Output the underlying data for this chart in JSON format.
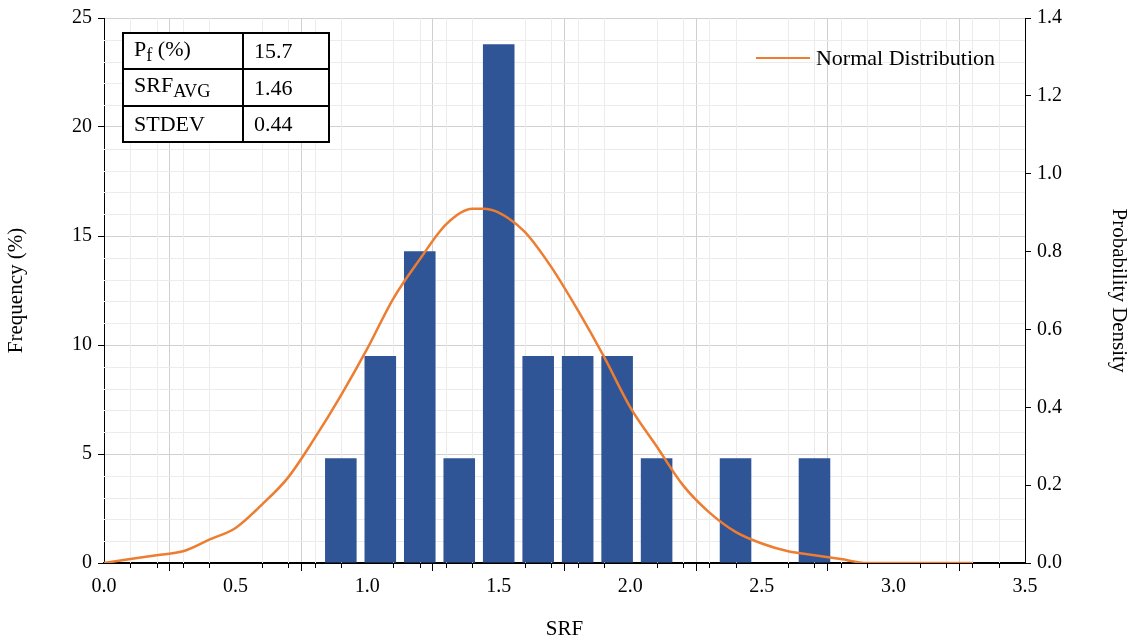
{
  "chart_data": {
    "type": "histogram",
    "xlabel": "SRF",
    "ylabel": "Frequency (%)",
    "y2label": "Probability Density",
    "bins": [
      0.825,
      0.975,
      1.125,
      1.275,
      1.425,
      1.575,
      1.725,
      1.875,
      2.025,
      2.175,
      2.325,
      2.475,
      2.625,
      2.775
    ],
    "series": [
      {
        "color": "#2f5597",
        "values": [
          4.8,
          9.5,
          14.3,
          4.8,
          23.8,
          9.5,
          9.5,
          9.5,
          4.8,
          0,
          4.8,
          0,
          4.8
        ]
      },
      {
        "type": "line",
        "name": "Normal Distribution",
        "color": "#ed7d31",
        "axis": "y2",
        "x": [
          0,
          0.1,
          0.2,
          0.3,
          0.4,
          0.5,
          0.6,
          0.7,
          0.8,
          0.9,
          1.0,
          1.1,
          1.2,
          1.3,
          1.4,
          1.44,
          1.5,
          1.6,
          1.7,
          1.8,
          1.9,
          2.0,
          2.1,
          2.2,
          2.3,
          2.4,
          2.5,
          2.6,
          2.7,
          2.8,
          2.9,
          3.0,
          3.1,
          3.2,
          3.3
        ],
        "values": [
          0.0,
          0.01,
          0.02,
          0.03,
          0.06,
          0.09,
          0.15,
          0.22,
          0.32,
          0.43,
          0.55,
          0.68,
          0.78,
          0.87,
          0.91,
          0.91,
          0.9,
          0.85,
          0.76,
          0.65,
          0.53,
          0.4,
          0.3,
          0.2,
          0.13,
          0.08,
          0.05,
          0.03,
          0.02,
          0.01,
          0.0,
          0.0,
          0.0,
          0.0,
          0.0
        ]
      }
    ],
    "xlim": [
      0,
      3.5
    ],
    "xticks": [
      {
        "value": 0,
        "label": "0.0"
      },
      {
        "value": 0.5,
        "label": "0.5"
      },
      {
        "value": 1,
        "label": "1.0"
      },
      {
        "value": 1.5,
        "label": "1.5"
      },
      {
        "value": 2,
        "label": "2.0"
      },
      {
        "value": 2.5,
        "label": "2.5"
      },
      {
        "value": 3,
        "label": "3.0"
      },
      {
        "value": 3.5,
        "label": "3.5"
      }
    ],
    "ylim": [
      0,
      25
    ],
    "yticks": [
      0,
      5,
      10,
      15,
      20,
      25
    ],
    "y2lim": [
      0,
      1.4
    ],
    "y2ticks": [
      {
        "value": 0,
        "label": "0.0"
      },
      {
        "value": 0.2,
        "label": "0.2"
      },
      {
        "value": 0.4,
        "label": "0.4"
      },
      {
        "value": 0.6,
        "label": "0.6"
      },
      {
        "value": 0.8,
        "label": "0.8"
      },
      {
        "value": 1.0,
        "label": "1.0"
      },
      {
        "value": 1.2,
        "label": "1.2"
      },
      {
        "value": 1.4,
        "label": "1.4"
      }
    ],
    "annotations": [
      "P$_{f}$ (%)",
      "15.7",
      "SRF$_{AVG}$",
      "1.46",
      "STDEV",
      "0.44"
    ],
    "grid": true,
    "legend": "top right",
    "marker": "none",
    "line_style": "solid"
  }
}
